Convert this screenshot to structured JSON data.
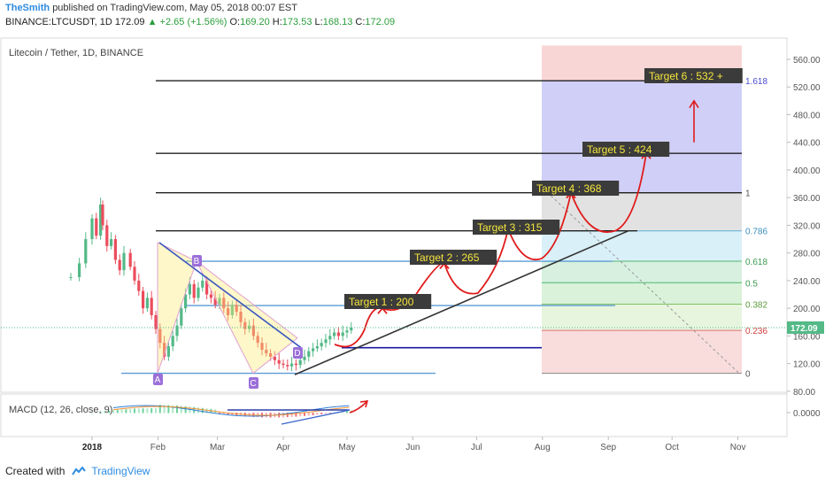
{
  "header": {
    "author": "TheSmith",
    "published": "published on TradingView.com, May 05, 2018 00:07 EST",
    "symbol": "BINANCE:LTCUSDT, 1D",
    "last": "172.09",
    "change": "▲ +2.65 (+1.56%)",
    "o_label": "O:",
    "o_val": "169.20",
    "h_label": "H:",
    "h_val": "173.53",
    "l_label": "L:",
    "l_val": "168.13",
    "c_label": "C:",
    "c_val": "172.09"
  },
  "chart_data": {
    "type": "candlestick",
    "title": "Litecoin / Tether, 1D, BINANCE",
    "price_tag": "172.09",
    "y_ticks": [
      "560.00",
      "520.00",
      "480.00",
      "440.00",
      "400.00",
      "360.00",
      "320.00",
      "280.00",
      "240.00",
      "200.00",
      "160.00",
      "120.00",
      "80.00"
    ],
    "y_range": [
      75,
      580
    ],
    "x_ticks": [
      "2018",
      "Feb",
      "Mar",
      "Apr",
      "May",
      "Jun",
      "Jul",
      "Aug",
      "Sep",
      "Oct",
      "Nov"
    ],
    "fib_levels": [
      {
        "label": "1.618",
        "value": 529
      },
      {
        "label": "1",
        "value": 367
      },
      {
        "label": "0.786",
        "value": 312
      },
      {
        "label": "0.618",
        "value": 268
      },
      {
        "label": "0.5",
        "value": 237
      },
      {
        "label": "0.382",
        "value": 206
      },
      {
        "label": "0.236",
        "value": 168
      },
      {
        "label": "0",
        "value": 106
      }
    ],
    "targets": [
      {
        "label": "Target 1 : 200",
        "value": 200
      },
      {
        "label": "Target 2 : 265",
        "value": 265
      },
      {
        "label": "Target 3 : 315",
        "value": 315
      },
      {
        "label": "Target 4 : 368",
        "value": 368
      },
      {
        "label": "Target 5 : 424",
        "value": 424
      },
      {
        "label": "Target 6 : 532 +",
        "value": 532
      }
    ],
    "pattern_points": [
      "A",
      "B",
      "C",
      "D"
    ],
    "macd": {
      "title": "MACD (12, 26, close, 9)",
      "y_tick": "0.0000"
    },
    "colors": {
      "up": "#53b987",
      "down": "#eb4d5c",
      "target_bg": "#3b3b3b",
      "target_text": "#f5e63c",
      "arrow": "#e01b1b",
      "fib_line": "#5b9bd5"
    }
  },
  "footer": {
    "created_with": "Created with",
    "brand": "TradingView"
  }
}
